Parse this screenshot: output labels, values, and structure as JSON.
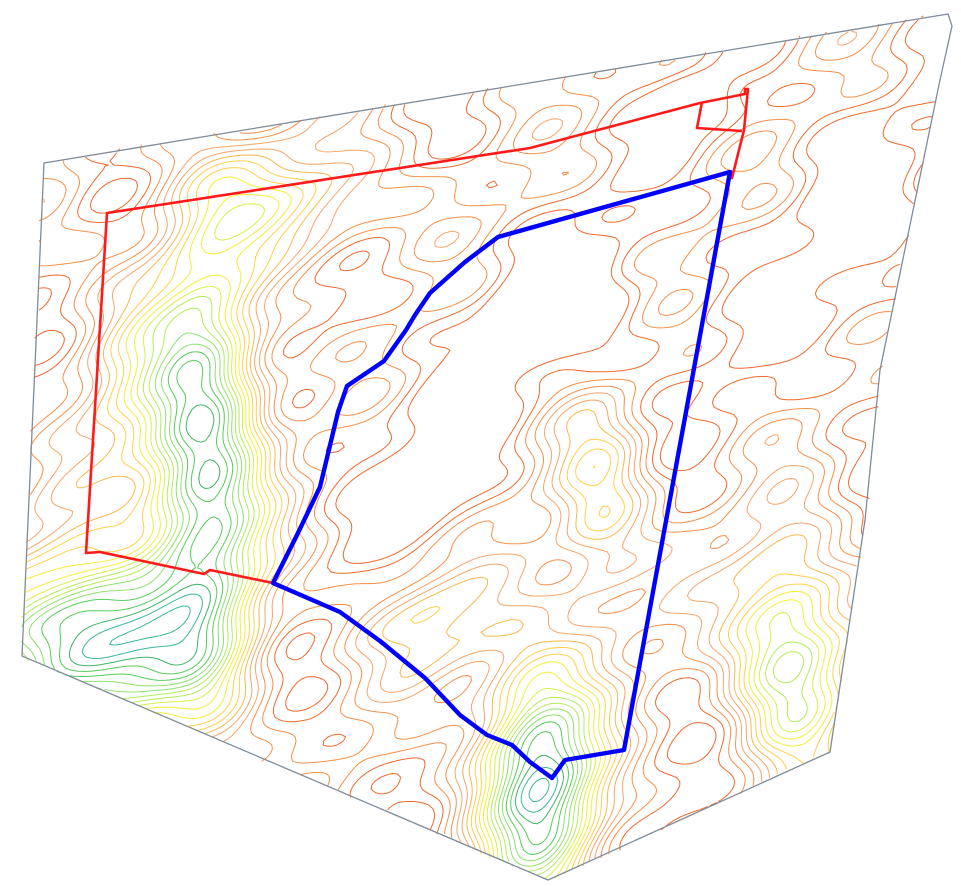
{
  "map": {
    "background": "#ffffff",
    "colors": {
      "survey_boundary": "#7f8c9a",
      "outer_parcel": "#ff1a1a",
      "inner_parcel": "#0000ff",
      "contour_palette": [
        "#e8481f",
        "#ef6a2e",
        "#f5904a",
        "#f6a56a",
        "#f7b94f",
        "#ffd04a",
        "#f3ee3a",
        "#d6f04a",
        "#b4ec5a",
        "#8ee06e",
        "#56cc5a",
        "#3fb36a",
        "#39b79d",
        "#2fb9b0",
        "#37c5c8"
      ]
    },
    "layers": {
      "survey_boundary": "survey-boundary",
      "contours": "topographic-contours",
      "outer_parcel": "outer-parcel-boundary",
      "inner_parcel": "inner-parcel-boundary"
    }
  }
}
